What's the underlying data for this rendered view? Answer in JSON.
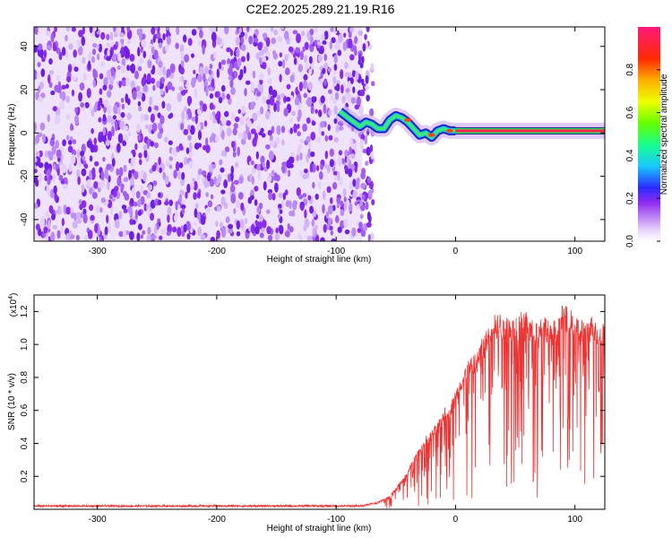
{
  "page_title": "C2E2.2025.289.21.19.R16",
  "chart_data": [
    {
      "type": "heatmap",
      "title": "C2E2.2025.289.21.19.R16",
      "xlabel": "Height of straight line (km)",
      "ylabel": "Frequency (Hz)",
      "xlim": [
        -353,
        125
      ],
      "ylim": [
        -50,
        49
      ],
      "xticks": [
        -300,
        -200,
        -100,
        0,
        100
      ],
      "xtick_labels": [
        "-300",
        "-200",
        "-100",
        "0",
        "100"
      ],
      "yticks": [
        -40,
        -20,
        0,
        20,
        40
      ],
      "ytick_labels": [
        "-40",
        "-20",
        "0",
        "20",
        "40"
      ],
      "noise_region_x": [
        -353,
        -78
      ],
      "signal_trace": {
        "x": [
          -97,
          -90,
          -85,
          -80,
          -75,
          -70,
          -65,
          -60,
          -55,
          -50,
          -45,
          -40,
          -35,
          -30,
          -25,
          -20,
          -15,
          -10,
          -5,
          0,
          20,
          60,
          100,
          125
        ],
        "y": [
          10,
          7,
          5,
          3,
          5,
          4,
          2,
          2,
          6,
          8,
          7,
          5,
          2,
          -1,
          0,
          -2,
          1,
          2,
          1,
          1,
          1,
          1,
          1,
          1
        ]
      },
      "colorbar": {
        "label": "Normalized spectral amplitude",
        "range": [
          0,
          1
        ],
        "ticks": [
          0.0,
          0.2,
          0.4,
          0.6,
          0.8
        ],
        "tick_labels": [
          "0.0",
          "0.2",
          "0.4",
          "0.6",
          "0.8"
        ]
      }
    },
    {
      "type": "line",
      "xlabel": "Height of straight line (km)",
      "ylabel": "SNR (10 * v/v)",
      "multiplier_label": "(x10",
      "multiplier_exp": "4",
      "xlim": [
        -353,
        125
      ],
      "ylim": [
        0,
        1.3
      ],
      "xticks": [
        -300,
        -200,
        -100,
        0,
        100
      ],
      "xtick_labels": [
        "-300",
        "-200",
        "-100",
        "0",
        "100"
      ],
      "yticks": [
        0.2,
        0.4,
        0.6,
        0.8,
        1.0,
        1.2
      ],
      "ytick_labels": [
        "0.2",
        "0.4",
        "0.6",
        "0.8",
        "1.0",
        "1.2"
      ],
      "series": [
        {
          "name": "SNR",
          "color": "#ee3333",
          "x": [
            -353,
            -300,
            -250,
            -200,
            -150,
            -100,
            -80,
            -65,
            -55,
            -45,
            -40,
            -35,
            -30,
            -25,
            -20,
            -15,
            -10,
            -5,
            0,
            5,
            10,
            15,
            20,
            25,
            30,
            35,
            40,
            45,
            50,
            55,
            60,
            65,
            70,
            75,
            80,
            85,
            90,
            95,
            100,
            105,
            110,
            115,
            120,
            125
          ],
          "y": [
            0.02,
            0.02,
            0.02,
            0.02,
            0.02,
            0.02,
            0.02,
            0.04,
            0.08,
            0.17,
            0.22,
            0.3,
            0.35,
            0.42,
            0.45,
            0.5,
            0.58,
            0.6,
            0.68,
            0.78,
            0.85,
            0.88,
            0.95,
            1.02,
            1.12,
            1.15,
            1.1,
            1.12,
            1.08,
            1.18,
            1.15,
            1.08,
            1.1,
            1.12,
            1.05,
            1.12,
            1.18,
            1.15,
            1.12,
            1.1,
            1.08,
            1.12,
            1.05,
            1.1
          ]
        }
      ]
    }
  ]
}
